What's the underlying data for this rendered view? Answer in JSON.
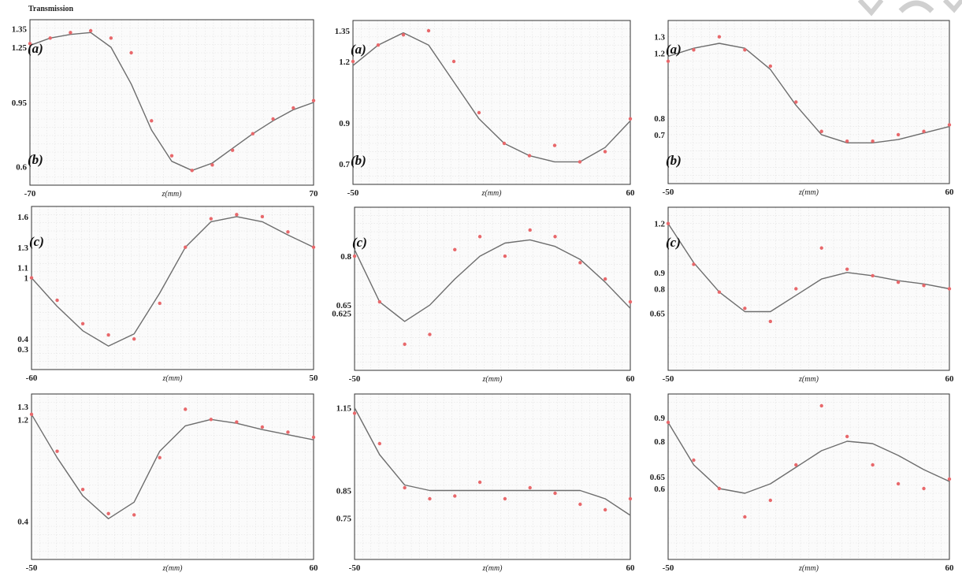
{
  "figure": {
    "ylabel": "Transmission",
    "xlabel": "z(mm)",
    "colors": {
      "fit": "#6d6d6d",
      "data": "#e8686b",
      "grid": "#e2e2e2",
      "axis": "#333333"
    }
  },
  "chart_data": [
    {
      "type": "line",
      "panel_labels": [
        "(a)",
        "(b)"
      ],
      "xlim": [
        -70,
        70
      ],
      "ylim": [
        0.5,
        1.4
      ],
      "x_ticks": [
        -70,
        70
      ],
      "y_ticks": [
        1.35,
        1.25,
        0.95,
        0.6
      ],
      "xlabel": "z(mm)",
      "fit": {
        "x": [
          -70,
          -60,
          -50,
          -40,
          -30,
          -20,
          -10,
          0,
          10,
          20,
          30,
          40,
          50,
          60,
          70
        ],
        "y": [
          1.26,
          1.3,
          1.32,
          1.33,
          1.25,
          1.05,
          0.8,
          0.63,
          0.58,
          0.62,
          0.7,
          0.78,
          0.85,
          0.91,
          0.95
        ]
      },
      "data": {
        "x": [
          -70,
          -60,
          -50,
          -40,
          -30,
          -20,
          -10,
          0,
          10,
          20,
          30,
          40,
          50,
          60,
          70
        ],
        "y": [
          1.27,
          1.3,
          1.33,
          1.34,
          1.3,
          1.22,
          0.85,
          0.66,
          0.58,
          0.61,
          0.69,
          0.78,
          0.86,
          0.92,
          0.96
        ]
      }
    },
    {
      "type": "line",
      "panel_labels": [
        "(a)",
        "(b)"
      ],
      "xlim": [
        -50,
        60
      ],
      "ylim": [
        0.6,
        1.4
      ],
      "x_ticks": [
        -50,
        60
      ],
      "y_ticks": [
        1.35,
        1.2,
        0.9,
        0.7
      ],
      "xlabel": "z(mm)",
      "fit": {
        "x": [
          -50,
          -40,
          -30,
          -20,
          -10,
          0,
          10,
          20,
          30,
          40,
          50,
          60
        ],
        "y": [
          1.18,
          1.28,
          1.34,
          1.28,
          1.1,
          0.92,
          0.8,
          0.74,
          0.71,
          0.71,
          0.78,
          0.91
        ]
      },
      "data": {
        "x": [
          -50,
          -40,
          -30,
          -20,
          -10,
          0,
          10,
          20,
          30,
          40,
          50,
          60
        ],
        "y": [
          1.2,
          1.28,
          1.33,
          1.35,
          1.2,
          0.95,
          0.8,
          0.74,
          0.79,
          0.71,
          0.76,
          0.92
        ]
      }
    },
    {
      "type": "line",
      "panel_labels": [
        "(a)",
        "(b)"
      ],
      "xlim": [
        -50,
        60
      ],
      "ylim": [
        0.4,
        1.4
      ],
      "x_ticks": [
        -50,
        60
      ],
      "y_ticks": [
        1.3,
        1.2,
        0.8,
        0.7
      ],
      "xlabel": "z(mm)",
      "fit": {
        "x": [
          -50,
          -40,
          -30,
          -20,
          -10,
          0,
          10,
          20,
          30,
          40,
          50,
          60
        ],
        "y": [
          1.18,
          1.23,
          1.26,
          1.23,
          1.1,
          0.88,
          0.7,
          0.65,
          0.65,
          0.67,
          0.71,
          0.75
        ]
      },
      "data": {
        "x": [
          -50,
          -40,
          -30,
          -20,
          -10,
          0,
          10,
          20,
          30,
          40,
          50,
          60
        ],
        "y": [
          1.15,
          1.22,
          1.3,
          1.22,
          1.12,
          0.9,
          0.72,
          0.66,
          0.66,
          0.7,
          0.72,
          0.76
        ]
      }
    },
    {
      "type": "line",
      "panel_labels": [
        "(c)"
      ],
      "xlim": [
        -60,
        50
      ],
      "ylim": [
        0.1,
        1.7
      ],
      "x_ticks": [
        -60,
        50
      ],
      "y_ticks": [
        1.6,
        1.3,
        1.1,
        1,
        0.4,
        0.3
      ],
      "xlabel": "z(mm)",
      "fit": {
        "x": [
          -60,
          -50,
          -40,
          -30,
          -20,
          -10,
          0,
          10,
          20,
          30,
          40,
          50
        ],
        "y": [
          1.0,
          0.72,
          0.48,
          0.33,
          0.45,
          0.85,
          1.3,
          1.55,
          1.6,
          1.55,
          1.42,
          1.3
        ]
      },
      "data": {
        "x": [
          -60,
          -50,
          -40,
          -30,
          -20,
          -10,
          0,
          10,
          20,
          30,
          40,
          50
        ],
        "y": [
          1.0,
          0.78,
          0.55,
          0.44,
          0.4,
          0.75,
          1.3,
          1.58,
          1.62,
          1.6,
          1.45,
          1.3
        ]
      }
    },
    {
      "type": "line",
      "panel_labels": [
        "(c)"
      ],
      "xlim": [
        -50,
        60
      ],
      "ylim": [
        0.45,
        0.95
      ],
      "x_ticks": [
        -50,
        60
      ],
      "y_ticks": [
        0.8,
        0.65,
        0.625
      ],
      "xlabel": "z(mm)",
      "fit": {
        "x": [
          -50,
          -40,
          -30,
          -20,
          -10,
          0,
          10,
          20,
          30,
          40,
          50,
          60
        ],
        "y": [
          0.82,
          0.66,
          0.6,
          0.65,
          0.73,
          0.8,
          0.84,
          0.85,
          0.83,
          0.79,
          0.72,
          0.64
        ]
      },
      "data": {
        "x": [
          -50,
          -40,
          -30,
          -20,
          -10,
          0,
          10,
          20,
          30,
          40,
          50,
          60
        ],
        "y": [
          0.8,
          0.66,
          0.53,
          0.56,
          0.82,
          0.86,
          0.8,
          0.88,
          0.86,
          0.78,
          0.73,
          0.66
        ]
      }
    },
    {
      "type": "line",
      "panel_labels": [
        "(c)"
      ],
      "xlim": [
        -50,
        60
      ],
      "ylim": [
        0.3,
        1.3
      ],
      "x_ticks": [
        -50,
        60
      ],
      "y_ticks": [
        1.2,
        0.9,
        0.8,
        0.65
      ],
      "xlabel": "z(mm)",
      "fit": {
        "x": [
          -50,
          -40,
          -30,
          -20,
          -10,
          0,
          10,
          20,
          30,
          40,
          50,
          60
        ],
        "y": [
          1.2,
          0.96,
          0.78,
          0.66,
          0.66,
          0.76,
          0.86,
          0.9,
          0.88,
          0.85,
          0.83,
          0.8
        ]
      },
      "data": {
        "x": [
          -50,
          -40,
          -30,
          -20,
          -10,
          0,
          10,
          20,
          30,
          40,
          50,
          60
        ],
        "y": [
          1.2,
          0.95,
          0.78,
          0.68,
          0.6,
          0.8,
          1.05,
          0.92,
          0.88,
          0.84,
          0.82,
          0.8
        ]
      }
    },
    {
      "type": "line",
      "panel_labels": [],
      "xlim": [
        -50,
        60
      ],
      "ylim": [
        0.1,
        1.4
      ],
      "x_ticks": [
        -50,
        60
      ],
      "y_ticks": [
        1.3,
        1.2,
        0.4
      ],
      "xlabel": "z(mm)",
      "fit": {
        "x": [
          -50,
          -40,
          -30,
          -20,
          -10,
          0,
          10,
          20,
          30,
          40,
          50,
          60
        ],
        "y": [
          1.24,
          0.9,
          0.6,
          0.42,
          0.55,
          0.95,
          1.15,
          1.2,
          1.17,
          1.12,
          1.08,
          1.04
        ]
      },
      "data": {
        "x": [
          -50,
          -40,
          -30,
          -20,
          -10,
          0,
          10,
          20,
          30,
          40,
          50,
          60
        ],
        "y": [
          1.24,
          0.95,
          0.65,
          0.46,
          0.45,
          0.9,
          1.28,
          1.2,
          1.18,
          1.14,
          1.1,
          1.06
        ]
      }
    },
    {
      "type": "line",
      "panel_labels": [],
      "xlim": [
        -50,
        60
      ],
      "ylim": [
        0.6,
        1.2
      ],
      "x_ticks": [
        -50,
        60
      ],
      "y_ticks": [
        1.15,
        0.85,
        0.75
      ],
      "xlabel": "z(mm)",
      "fit": {
        "x": [
          -50,
          -40,
          -30,
          -20,
          -10,
          0,
          10,
          20,
          30,
          40,
          50,
          60
        ],
        "y": [
          1.15,
          0.98,
          0.87,
          0.85,
          0.85,
          0.85,
          0.85,
          0.85,
          0.85,
          0.85,
          0.82,
          0.76
        ]
      },
      "data": {
        "x": [
          -50,
          -40,
          -30,
          -20,
          -10,
          0,
          10,
          20,
          30,
          40,
          50,
          60
        ],
        "y": [
          1.13,
          1.02,
          0.86,
          0.82,
          0.83,
          0.88,
          0.82,
          0.86,
          0.84,
          0.8,
          0.78,
          0.82
        ]
      }
    },
    {
      "type": "line",
      "panel_labels": [],
      "xlim": [
        -50,
        60
      ],
      "ylim": [
        0.3,
        1.0
      ],
      "x_ticks": [
        -50,
        60
      ],
      "y_ticks": [
        0.9,
        0.8,
        0.65,
        0.6
      ],
      "xlabel": "z(mm)",
      "fit": {
        "x": [
          -50,
          -40,
          -30,
          -20,
          -10,
          0,
          10,
          20,
          30,
          40,
          50,
          60
        ],
        "y": [
          0.88,
          0.7,
          0.6,
          0.58,
          0.62,
          0.69,
          0.76,
          0.8,
          0.79,
          0.74,
          0.68,
          0.63
        ]
      },
      "data": {
        "x": [
          -50,
          -40,
          -30,
          -20,
          -10,
          0,
          10,
          20,
          30,
          40,
          50,
          60
        ],
        "y": [
          0.88,
          0.72,
          0.6,
          0.48,
          0.55,
          0.7,
          0.95,
          0.82,
          0.7,
          0.62,
          0.6,
          0.64
        ]
      }
    }
  ]
}
